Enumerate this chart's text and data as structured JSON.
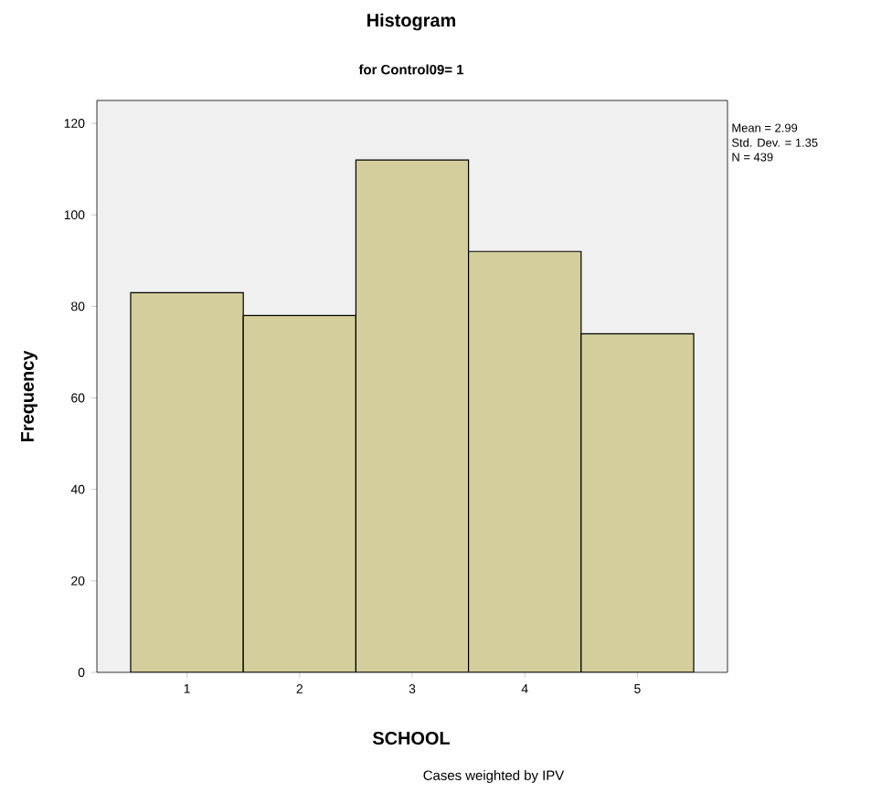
{
  "chart_data": {
    "type": "histogram",
    "title": "Histogram",
    "subtitle": "for Control09= 1",
    "xlabel": "SCHOOL",
    "ylabel": "Frequency",
    "bins": [
      0.5,
      1.5,
      2.5,
      3.5,
      4.5,
      5.5
    ],
    "values": [
      83,
      78,
      112,
      92,
      74
    ],
    "color": "#d3ce9b",
    "xlim": [
      0.2,
      5.8
    ],
    "ylim": [
      0,
      125
    ],
    "xticks": [
      1,
      2,
      3,
      4,
      5
    ],
    "yticks": [
      0,
      20,
      40,
      60,
      80,
      100,
      120
    ],
    "annotations": [
      "Mean = 2.99",
      "Std. Dev. = 1.35",
      "N = 439",
      "Cases weighted by IPV"
    ]
  }
}
